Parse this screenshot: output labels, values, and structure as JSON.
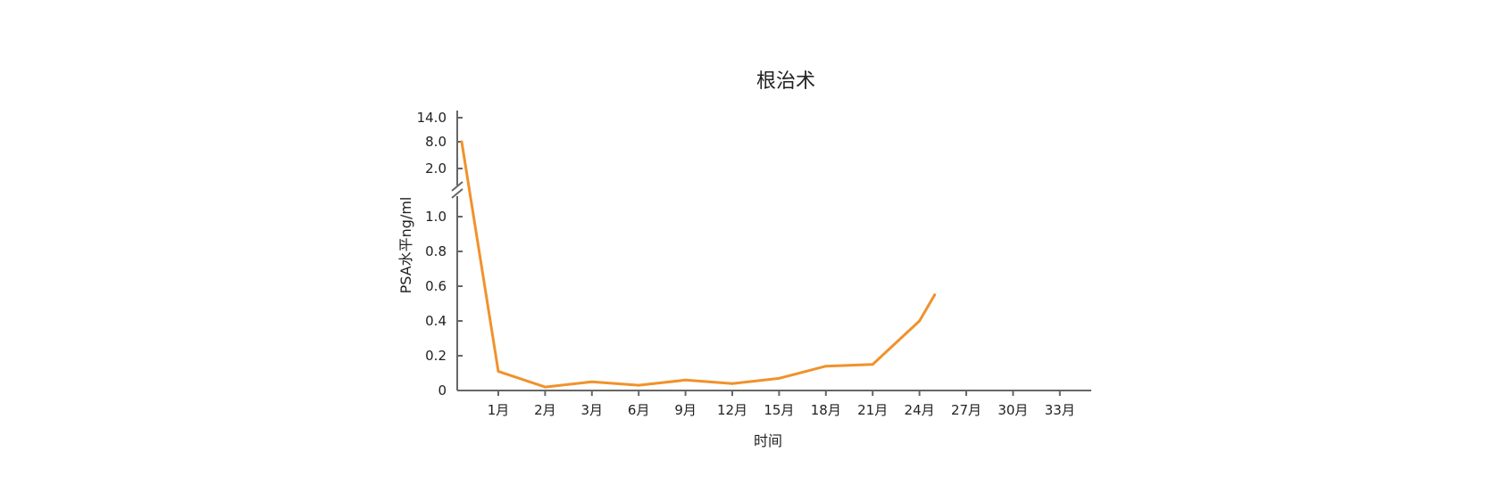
{
  "chart_data": {
    "type": "line",
    "title": "根治术",
    "xlabel": "时间",
    "ylabel": "PSA水平ng/ml",
    "y_axis_break": true,
    "y_ticks_lower": [
      "0",
      "0.2",
      "0.4",
      "0.6",
      "0.8",
      "1.0"
    ],
    "y_ticks_upper": [
      "2.0",
      "8.0",
      "14.0"
    ],
    "categories": [
      "1月",
      "2月",
      "3月",
      "6月",
      "9月",
      "12月",
      "15月",
      "18月",
      "21月",
      "24月",
      "27月",
      "30月",
      "33月"
    ],
    "series": [
      {
        "color": "#f0922b",
        "points": [
          {
            "x": "0",
            "y": 8.0
          },
          {
            "x": "1月",
            "y": 0.11
          },
          {
            "x": "2月",
            "y": 0.02
          },
          {
            "x": "3月",
            "y": 0.05
          },
          {
            "x": "6月",
            "y": 0.03
          },
          {
            "x": "9月",
            "y": 0.06
          },
          {
            "x": "12月",
            "y": 0.04
          },
          {
            "x": "15月",
            "y": 0.07
          },
          {
            "x": "18月",
            "y": 0.14
          },
          {
            "x": "21月",
            "y": 0.15
          },
          {
            "x": "24月",
            "y": 0.4
          },
          {
            "x": "25月",
            "y": 0.55
          }
        ]
      }
    ],
    "grid": false,
    "legend": "none"
  }
}
